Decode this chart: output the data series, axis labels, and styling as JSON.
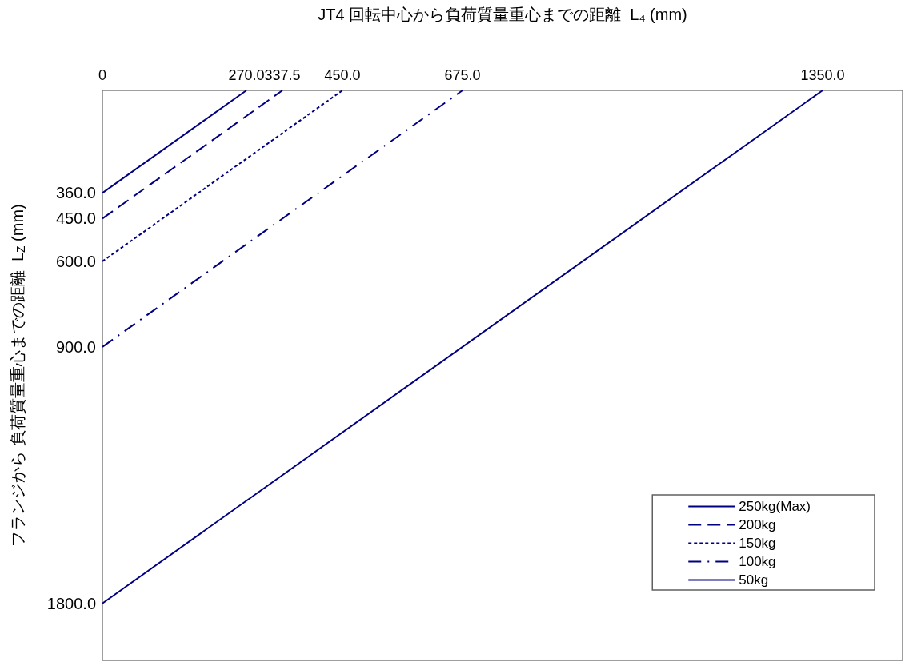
{
  "chart_data": {
    "type": "line",
    "xlabel": "JT4 回転中心から負荷質量重心までの距離  L₄ (mm)",
    "ylabel": "フランジから 負荷質量重心までの距離  L$_{Z}$ (mm)",
    "xlim": [
      0,
      1500
    ],
    "xticks": [
      0,
      {
        "value": 270,
        "label": "270.0"
      },
      {
        "value": 337.5,
        "label": "337.5"
      },
      {
        "value": 450,
        "label": "450.0"
      },
      {
        "value": 675,
        "label": "675.0"
      },
      {
        "value": 1350,
        "label": "1350.0"
      }
    ],
    "ylim": [
      2000,
      0
    ],
    "yticks": [
      {
        "value": 360,
        "label": "360.0"
      },
      {
        "value": 450,
        "label": "450.0"
      },
      {
        "value": 600,
        "label": "600.0"
      },
      {
        "value": 900,
        "label": "900.0"
      },
      {
        "value": 1800,
        "label": "1800.0"
      }
    ],
    "grid": false,
    "legend": "bottom right",
    "marker": "none",
    "series": [
      {
        "name": "250kg(Max)",
        "color": "#000080",
        "line_style": "solid",
        "x": [
          0,
          270
        ],
        "values": [
          360,
          0
        ]
      },
      {
        "name": "200kg",
        "color": "#000080",
        "line_style": "dashed",
        "x": [
          0,
          337.5
        ],
        "values": [
          450,
          0
        ]
      },
      {
        "name": "150kg",
        "color": "#000080",
        "line_style": "dotted",
        "x": [
          0,
          450
        ],
        "values": [
          600,
          0
        ]
      },
      {
        "name": "100kg",
        "color": "#000080",
        "line_style": "dashdot",
        "x": [
          0,
          675
        ],
        "values": [
          900,
          0
        ]
      },
      {
        "name": "50kg",
        "color": "#000080",
        "line_style": "solid",
        "x": [
          0,
          1350
        ],
        "values": [
          1800,
          0
        ]
      }
    ]
  }
}
